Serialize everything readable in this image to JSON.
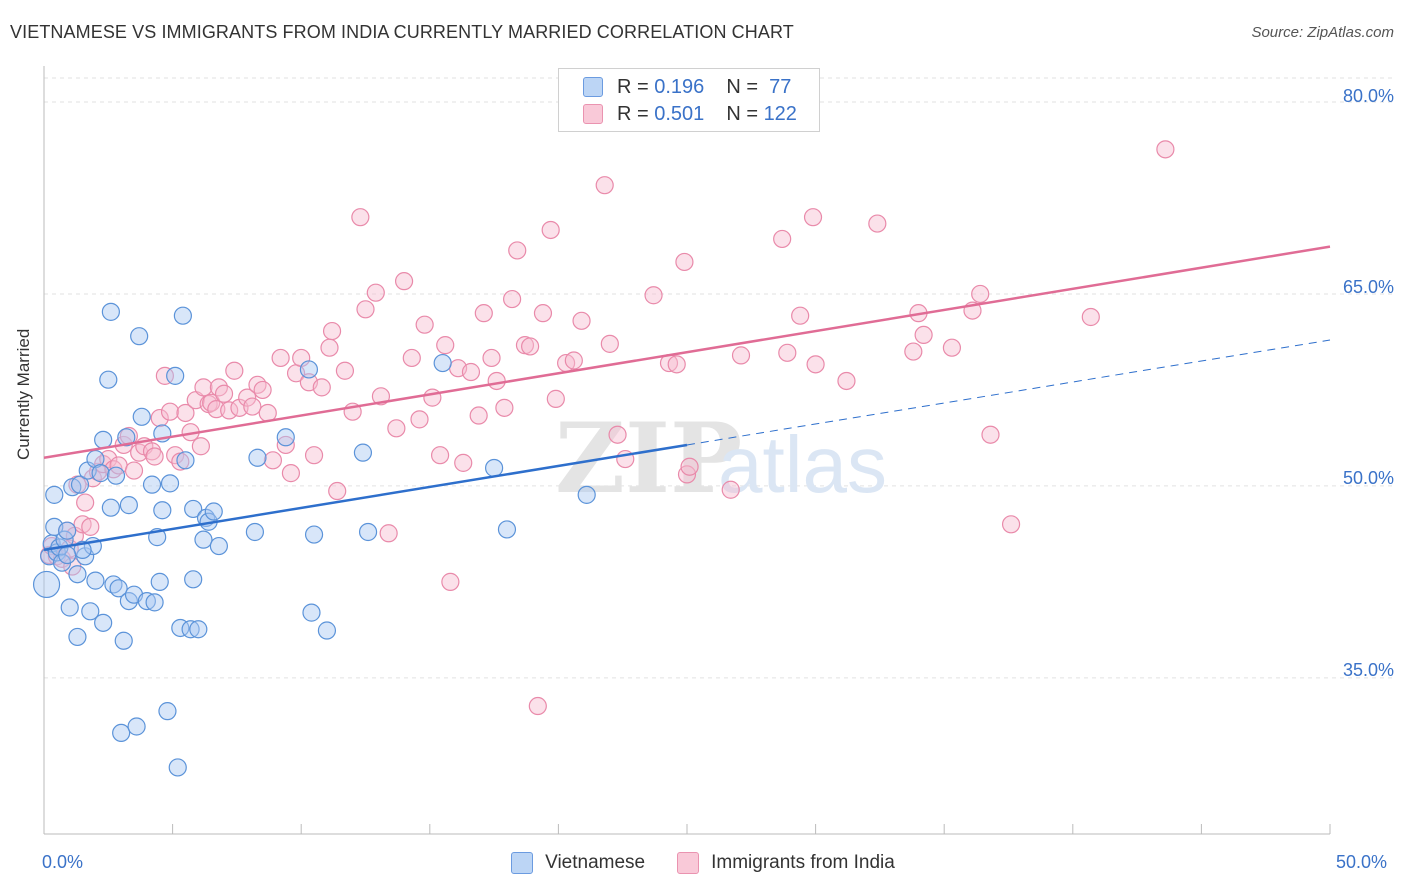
{
  "title": "VIETNAMESE VS IMMIGRANTS FROM INDIA CURRENTLY MARRIED CORRELATION CHART",
  "source": "Source: ZipAtlas.com",
  "colors": {
    "vietnamese_fill": "#a9c8f2",
    "vietnamese_stroke": "#5b93d9",
    "vietnamese_line": "#2e6fcc",
    "india_fill": "#f7bcd0",
    "india_stroke": "#e98aaa",
    "india_line": "#e06c95",
    "tick_text": "#3a72c8",
    "grid": "#e2e2e2"
  },
  "legend": {
    "r_label": "R =",
    "n_label": "N =",
    "vietnamese": {
      "r": "0.196",
      "n": "77"
    },
    "india": {
      "r": "0.501",
      "n": "122"
    }
  },
  "chart_data": {
    "type": "scatter",
    "title": "VIETNAMESE VS IMMIGRANTS FROM INDIA CURRENTLY MARRIED CORRELATION CHART",
    "xlabel": "",
    "ylabel": "Currently Married",
    "xlim": [
      0,
      50
    ],
    "ylim": [
      22.8,
      82.5
    ],
    "x_tick_labels": [
      "0.0%",
      "50.0%"
    ],
    "y_ticks": [
      35,
      50,
      65,
      80
    ],
    "y_tick_labels": [
      "35.0%",
      "50.0%",
      "65.0%",
      "80.0%"
    ],
    "grid": true,
    "legend_position": "top-center",
    "watermark": "ZIPatlas",
    "series": [
      {
        "name": "Vietnamese",
        "r": 0.196,
        "n": 77,
        "trend": {
          "x0": 0,
          "y0": 45.0,
          "x1": 25.0,
          "y1": 53.2,
          "dash_x1": 50,
          "dash_y1": 61.4
        },
        "points": [
          [
            0.1,
            42.3
          ],
          [
            0.2,
            44.5
          ],
          [
            0.3,
            45.5
          ],
          [
            0.4,
            46.8
          ],
          [
            0.4,
            49.3
          ],
          [
            0.5,
            44.8
          ],
          [
            0.6,
            45.2
          ],
          [
            0.7,
            44.0
          ],
          [
            0.8,
            45.8
          ],
          [
            0.9,
            46.5
          ],
          [
            1.0,
            40.5
          ],
          [
            1.1,
            49.9
          ],
          [
            1.3,
            43.1
          ],
          [
            1.3,
            38.2
          ],
          [
            1.4,
            50.1
          ],
          [
            1.6,
            44.5
          ],
          [
            1.7,
            51.2
          ],
          [
            1.8,
            40.2
          ],
          [
            1.9,
            45.3
          ],
          [
            2.0,
            42.6
          ],
          [
            2.0,
            52.1
          ],
          [
            2.2,
            51.0
          ],
          [
            2.3,
            39.3
          ],
          [
            2.3,
            53.6
          ],
          [
            2.5,
            58.3
          ],
          [
            2.6,
            63.6
          ],
          [
            2.7,
            42.3
          ],
          [
            2.8,
            50.8
          ],
          [
            2.9,
            42.0
          ],
          [
            3.0,
            30.7
          ],
          [
            3.1,
            37.9
          ],
          [
            3.2,
            53.8
          ],
          [
            3.3,
            41.0
          ],
          [
            3.3,
            48.5
          ],
          [
            3.5,
            41.5
          ],
          [
            3.6,
            31.2
          ],
          [
            3.7,
            61.7
          ],
          [
            3.8,
            55.4
          ],
          [
            4.0,
            41.0
          ],
          [
            4.2,
            50.1
          ],
          [
            4.3,
            40.9
          ],
          [
            4.4,
            46.0
          ],
          [
            4.5,
            42.5
          ],
          [
            4.6,
            54.1
          ],
          [
            4.6,
            48.1
          ],
          [
            4.9,
            50.2
          ],
          [
            5.1,
            58.6
          ],
          [
            5.2,
            28.0
          ],
          [
            5.3,
            38.9
          ],
          [
            5.4,
            63.3
          ],
          [
            5.5,
            52.0
          ],
          [
            5.7,
            38.8
          ],
          [
            5.8,
            42.7
          ],
          [
            5.8,
            48.2
          ],
          [
            6.0,
            38.8
          ],
          [
            6.2,
            45.8
          ],
          [
            6.3,
            47.5
          ],
          [
            6.4,
            47.2
          ],
          [
            6.6,
            48.0
          ],
          [
            6.8,
            45.3
          ],
          [
            4.8,
            32.4
          ],
          [
            8.2,
            46.4
          ],
          [
            8.3,
            52.2
          ],
          [
            9.4,
            53.8
          ],
          [
            10.3,
            59.1
          ],
          [
            10.4,
            40.1
          ],
          [
            10.5,
            46.2
          ],
          [
            11.0,
            38.7
          ],
          [
            12.4,
            52.6
          ],
          [
            12.6,
            46.4
          ],
          [
            15.5,
            59.6
          ],
          [
            17.5,
            51.4
          ],
          [
            18.0,
            46.6
          ],
          [
            21.1,
            49.3
          ],
          [
            1.5,
            45.0
          ],
          [
            2.6,
            48.3
          ],
          [
            0.9,
            44.6
          ]
        ]
      },
      {
        "name": "Immigrants from India",
        "r": 0.501,
        "n": 122,
        "trend": {
          "x0": 0,
          "y0": 52.2,
          "x1": 50,
          "y1": 68.7
        },
        "points": [
          [
            0.2,
            44.6
          ],
          [
            0.3,
            45.3
          ],
          [
            0.5,
            44.5
          ],
          [
            0.7,
            44.3
          ],
          [
            0.9,
            46.5
          ],
          [
            1.0,
            45.1
          ],
          [
            1.1,
            43.7
          ],
          [
            1.2,
            46.1
          ],
          [
            1.3,
            50.1
          ],
          [
            1.5,
            47.0
          ],
          [
            1.6,
            48.7
          ],
          [
            1.8,
            46.8
          ],
          [
            1.9,
            50.6
          ],
          [
            2.1,
            51.1
          ],
          [
            2.3,
            51.7
          ],
          [
            2.5,
            52.1
          ],
          [
            2.7,
            51.3
          ],
          [
            2.9,
            51.6
          ],
          [
            3.1,
            53.2
          ],
          [
            3.3,
            53.9
          ],
          [
            3.5,
            51.2
          ],
          [
            3.7,
            52.6
          ],
          [
            3.9,
            53.1
          ],
          [
            4.2,
            52.7
          ],
          [
            4.3,
            52.3
          ],
          [
            4.5,
            55.3
          ],
          [
            4.7,
            58.6
          ],
          [
            4.9,
            55.8
          ],
          [
            5.1,
            52.4
          ],
          [
            5.3,
            51.9
          ],
          [
            5.5,
            55.7
          ],
          [
            5.7,
            54.2
          ],
          [
            5.9,
            56.7
          ],
          [
            6.1,
            53.1
          ],
          [
            6.2,
            57.7
          ],
          [
            6.4,
            56.4
          ],
          [
            6.5,
            56.5
          ],
          [
            6.7,
            56.0
          ],
          [
            6.8,
            57.7
          ],
          [
            7.0,
            57.2
          ],
          [
            7.2,
            55.9
          ],
          [
            7.4,
            59.0
          ],
          [
            7.6,
            56.1
          ],
          [
            7.9,
            56.9
          ],
          [
            8.1,
            56.2
          ],
          [
            8.3,
            57.9
          ],
          [
            8.5,
            57.5
          ],
          [
            8.7,
            55.7
          ],
          [
            8.9,
            52.0
          ],
          [
            9.2,
            60.0
          ],
          [
            9.4,
            53.2
          ],
          [
            9.6,
            51.0
          ],
          [
            9.8,
            58.8
          ],
          [
            10.0,
            60.0
          ],
          [
            10.3,
            58.1
          ],
          [
            10.5,
            52.4
          ],
          [
            10.8,
            57.7
          ],
          [
            11.1,
            60.8
          ],
          [
            11.2,
            62.1
          ],
          [
            11.4,
            49.6
          ],
          [
            11.7,
            59.0
          ],
          [
            12.0,
            55.8
          ],
          [
            12.3,
            71.0
          ],
          [
            12.5,
            63.8
          ],
          [
            12.9,
            65.1
          ],
          [
            13.1,
            57.0
          ],
          [
            13.4,
            46.3
          ],
          [
            13.7,
            54.5
          ],
          [
            14.0,
            66.0
          ],
          [
            14.3,
            60.0
          ],
          [
            14.6,
            55.2
          ],
          [
            14.8,
            62.6
          ],
          [
            15.1,
            56.9
          ],
          [
            15.4,
            52.4
          ],
          [
            15.6,
            61.0
          ],
          [
            15.8,
            42.5
          ],
          [
            16.1,
            59.2
          ],
          [
            16.3,
            51.8
          ],
          [
            16.6,
            58.9
          ],
          [
            16.9,
            55.5
          ],
          [
            17.1,
            63.5
          ],
          [
            17.4,
            60.0
          ],
          [
            17.6,
            58.2
          ],
          [
            17.9,
            56.1
          ],
          [
            18.2,
            64.6
          ],
          [
            18.4,
            68.4
          ],
          [
            18.7,
            61.0
          ],
          [
            18.9,
            60.9
          ],
          [
            19.2,
            32.8
          ],
          [
            19.4,
            63.5
          ],
          [
            19.7,
            70.0
          ],
          [
            19.9,
            56.8
          ],
          [
            20.3,
            59.6
          ],
          [
            20.6,
            59.8
          ],
          [
            20.9,
            62.9
          ],
          [
            21.8,
            73.5
          ],
          [
            22.0,
            61.1
          ],
          [
            22.3,
            54.0
          ],
          [
            22.6,
            52.1
          ],
          [
            23.7,
            64.9
          ],
          [
            24.3,
            59.6
          ],
          [
            24.6,
            59.5
          ],
          [
            24.9,
            67.5
          ],
          [
            25.0,
            50.9
          ],
          [
            25.1,
            51.5
          ],
          [
            26.7,
            49.7
          ],
          [
            27.1,
            60.2
          ],
          [
            28.7,
            69.3
          ],
          [
            28.9,
            60.4
          ],
          [
            29.4,
            63.3
          ],
          [
            29.9,
            71.0
          ],
          [
            30.0,
            59.5
          ],
          [
            31.2,
            58.2
          ],
          [
            32.4,
            70.5
          ],
          [
            33.8,
            60.5
          ],
          [
            34.0,
            63.5
          ],
          [
            34.2,
            61.8
          ],
          [
            35.3,
            60.8
          ],
          [
            36.1,
            63.7
          ],
          [
            36.4,
            65.0
          ],
          [
            36.8,
            54.0
          ],
          [
            37.6,
            47.0
          ],
          [
            40.7,
            63.2
          ],
          [
            43.6,
            76.3
          ]
        ]
      }
    ]
  }
}
